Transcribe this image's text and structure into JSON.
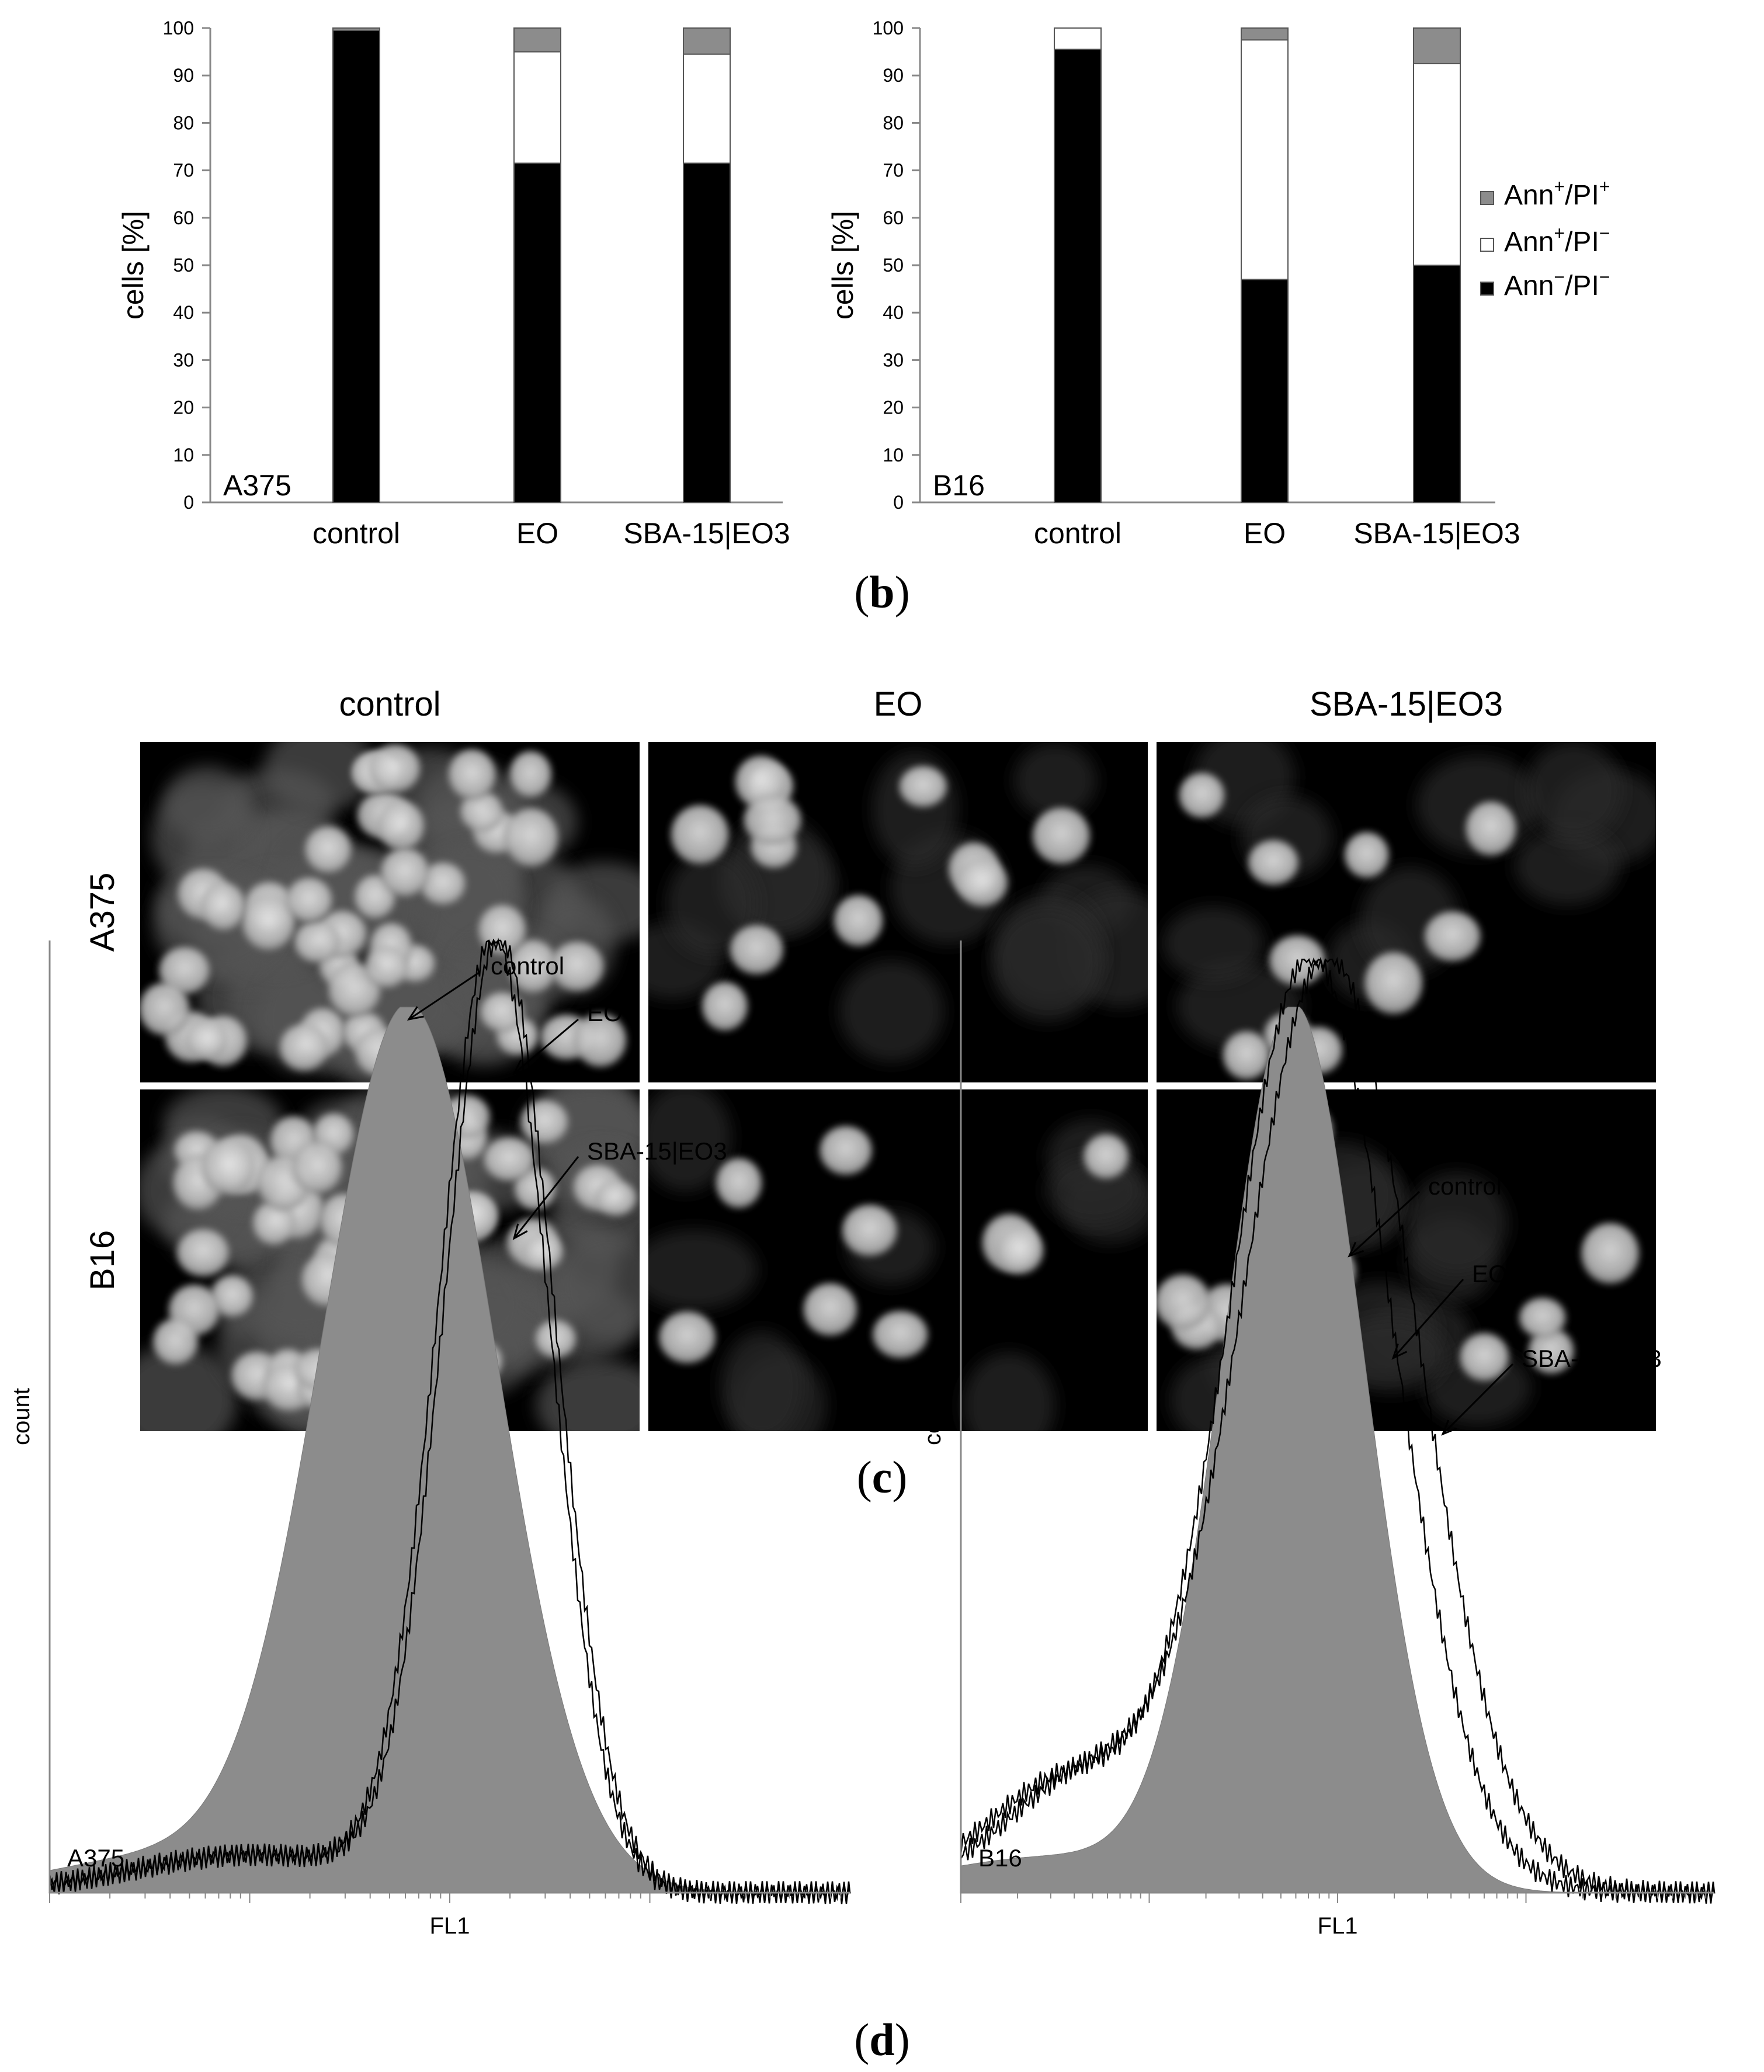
{
  "chart_data": [
    {
      "type": "bar",
      "stacked": true,
      "ylabel": "cells [%]",
      "ylim": [
        0,
        100
      ],
      "yticks": [
        0,
        10,
        20,
        30,
        40,
        50,
        60,
        70,
        80,
        90,
        100
      ],
      "annotation": "A375",
      "categories": [
        "control",
        "EO",
        "SBA-15|EO3"
      ],
      "series": [
        {
          "name": "Ann−/PI−",
          "color": "#000000",
          "values": [
            99.5,
            71.5,
            71.5
          ]
        },
        {
          "name": "Ann+/PI−",
          "color": "#ffffff",
          "values": [
            0,
            23.5,
            23
          ]
        },
        {
          "name": "Ann+/PI+",
          "color": "#8c8c8c",
          "values": [
            0.5,
            5,
            5.5
          ]
        }
      ]
    },
    {
      "type": "bar",
      "stacked": true,
      "ylabel": "cells [%]",
      "ylim": [
        0,
        100
      ],
      "yticks": [
        0,
        10,
        20,
        30,
        40,
        50,
        60,
        70,
        80,
        90,
        100
      ],
      "annotation": "B16",
      "categories": [
        "control",
        "EO",
        "SBA-15|EO3"
      ],
      "legend_position": "right",
      "series": [
        {
          "name": "Ann−/PI−",
          "color": "#000000",
          "values": [
            95.5,
            47,
            50
          ]
        },
        {
          "name": "Ann+/PI−",
          "color": "#ffffff",
          "values": [
            4.5,
            50.5,
            42.5
          ]
        },
        {
          "name": "Ann+/PI+",
          "color": "#8c8c8c",
          "values": [
            0,
            2.5,
            7.5
          ]
        }
      ]
    },
    {
      "type": "area",
      "xlabel": "FL1",
      "ylabel": "count",
      "annotation": "A375",
      "x_scale": "log",
      "series": [
        {
          "name": "control",
          "style": "filled-gray",
          "peak": 0.45
        },
        {
          "name": "EO",
          "style": "line",
          "peak": 0.55
        },
        {
          "name": "SBA-15|EO3",
          "style": "line",
          "peak": 0.56
        }
      ]
    },
    {
      "type": "area",
      "xlabel": "FL1",
      "ylabel": "count",
      "annotation": "B16",
      "x_scale": "log",
      "series": [
        {
          "name": "control",
          "style": "filled-gray",
          "peak": 0.41
        },
        {
          "name": "EO",
          "style": "line",
          "peak": 0.44
        },
        {
          "name": "SBA-15|EO3",
          "style": "line",
          "peak": 0.46
        }
      ]
    }
  ],
  "legend": [
    {
      "label": "Ann",
      "sup": "+",
      "rest": "/PI",
      "sup2": "+",
      "color": "#8c8c8c"
    },
    {
      "label": "Ann",
      "sup": "+",
      "rest": "/PI",
      "sup2": "−",
      "color": "#ffffff"
    },
    {
      "label": "Ann",
      "sup": "−",
      "rest": "/PI",
      "sup2": "−",
      "color": "#000000"
    }
  ],
  "micrograph": {
    "columns": [
      "control",
      "EO",
      "SBA-15|EO3"
    ],
    "rows": [
      "A375",
      "B16"
    ]
  },
  "panel_labels": {
    "b": "b",
    "c": "c",
    "d": "d"
  }
}
